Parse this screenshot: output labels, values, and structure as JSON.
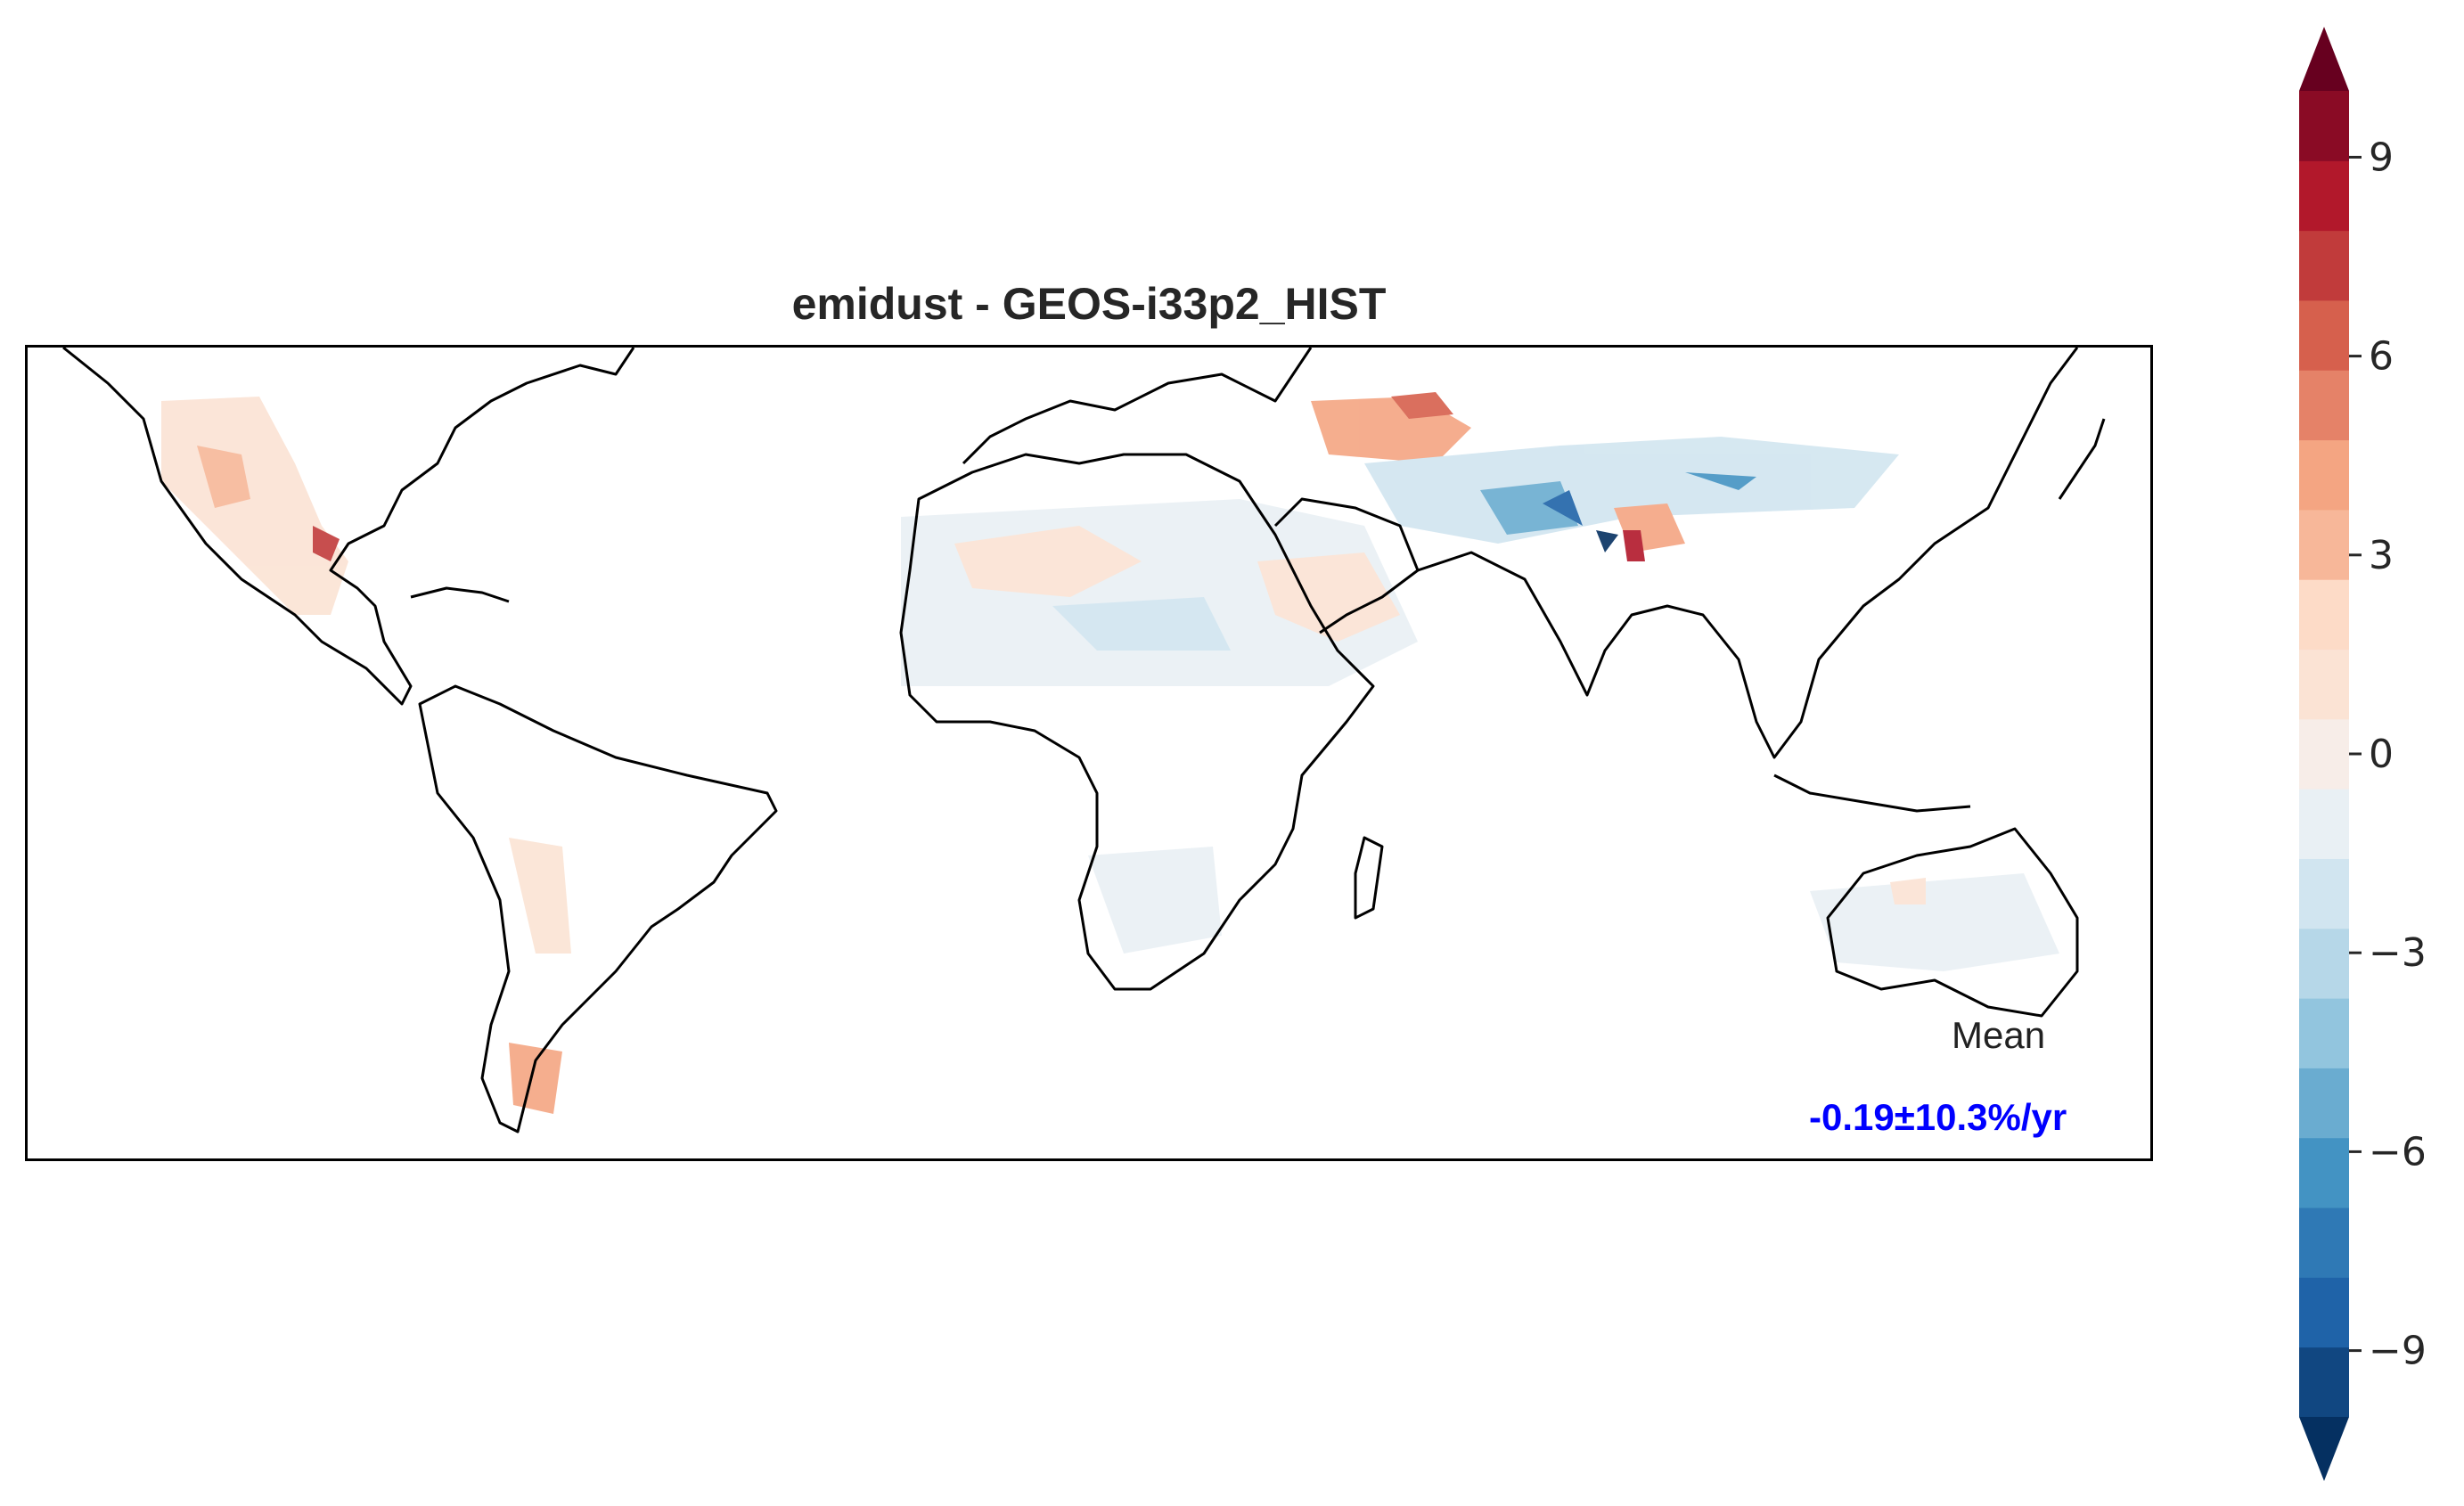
{
  "title": "emidust - GEOS-i33p2_HIST",
  "stats": {
    "label": "Mean",
    "value": "-0.19±10.3%/yr",
    "value_color": "#0000ff"
  },
  "colorbar": {
    "cmap": "RdBu_r",
    "extend": "both",
    "vmin": -10,
    "vmax": 10,
    "n_levels": 20,
    "tick_values": [
      9,
      6,
      3,
      0,
      -3,
      -6,
      -9
    ],
    "tick_labels": [
      "9",
      "6",
      "3",
      "0",
      "−3",
      "−6",
      "−9"
    ],
    "colors": [
      "#053061",
      "#114781",
      "#1f63a8",
      "#2f79b5",
      "#4393c3",
      "#6aacd0",
      "#92c5de",
      "#b6d7e8",
      "#d1e5f0",
      "#e9f0f4",
      "#f7ede8",
      "#fbe3d4",
      "#fddbc7",
      "#f7b799",
      "#f4a582",
      "#e58268",
      "#d6604d",
      "#c13b3b",
      "#b2182b",
      "#8a0b25",
      "#67001f"
    ]
  },
  "map": {
    "projection": "PlateCarree",
    "lon_range": [
      -130,
      170
    ],
    "lat_range": [
      -60,
      55
    ],
    "coastline_color": "#000000"
  }
}
